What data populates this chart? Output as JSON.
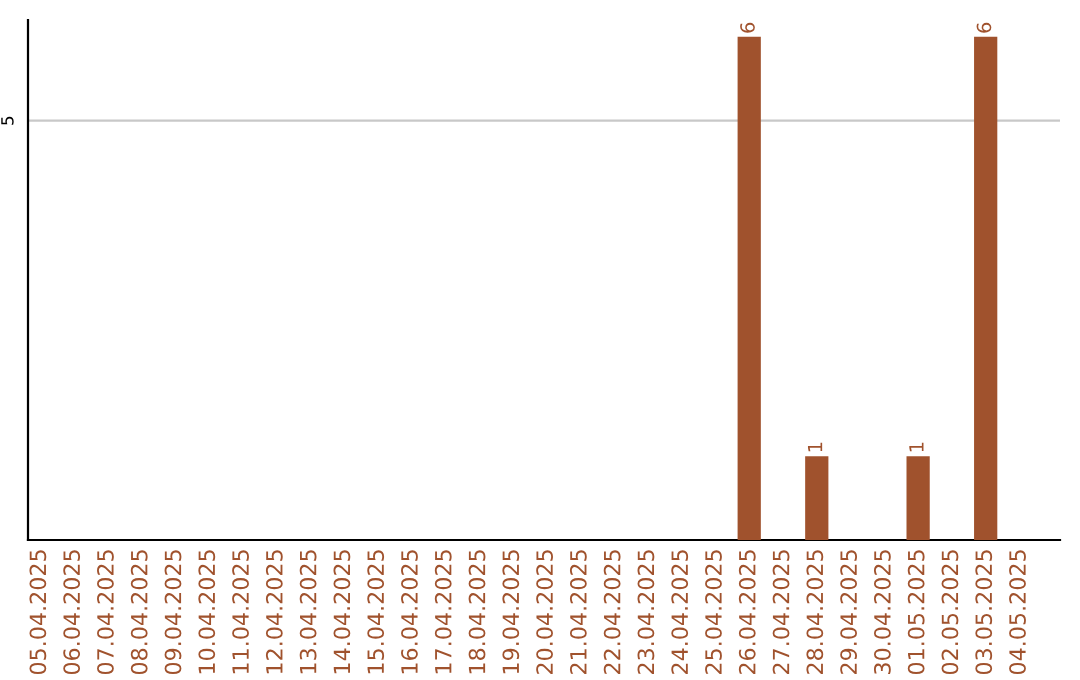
{
  "chart_data": {
    "type": "bar",
    "categories": [
      "05.04.2025",
      "06.04.2025",
      "07.04.2025",
      "08.04.2025",
      "09.04.2025",
      "10.04.2025",
      "11.04.2025",
      "12.04.2025",
      "13.04.2025",
      "14.04.2025",
      "15.04.2025",
      "16.04.2025",
      "17.04.2025",
      "18.04.2025",
      "19.04.2025",
      "20.04.2025",
      "21.04.2025",
      "22.04.2025",
      "23.04.2025",
      "24.04.2025",
      "25.04.2025",
      "26.04.2025",
      "27.04.2025",
      "28.04.2025",
      "29.04.2025",
      "30.04.2025",
      "01.05.2025",
      "02.05.2025",
      "03.05.2025",
      "04.05.2025"
    ],
    "values": [
      null,
      null,
      null,
      null,
      null,
      null,
      null,
      null,
      null,
      null,
      null,
      null,
      null,
      null,
      null,
      null,
      null,
      null,
      null,
      null,
      null,
      6,
      null,
      1,
      null,
      null,
      1,
      null,
      6,
      null
    ],
    "data_labels": true,
    "color": "#a0522d",
    "ylim": [
      0,
      6.2
    ],
    "ref_lines": [
      {
        "axis": "y",
        "value": 5,
        "label": "5",
        "color": "#c8c8c8"
      }
    ]
  }
}
